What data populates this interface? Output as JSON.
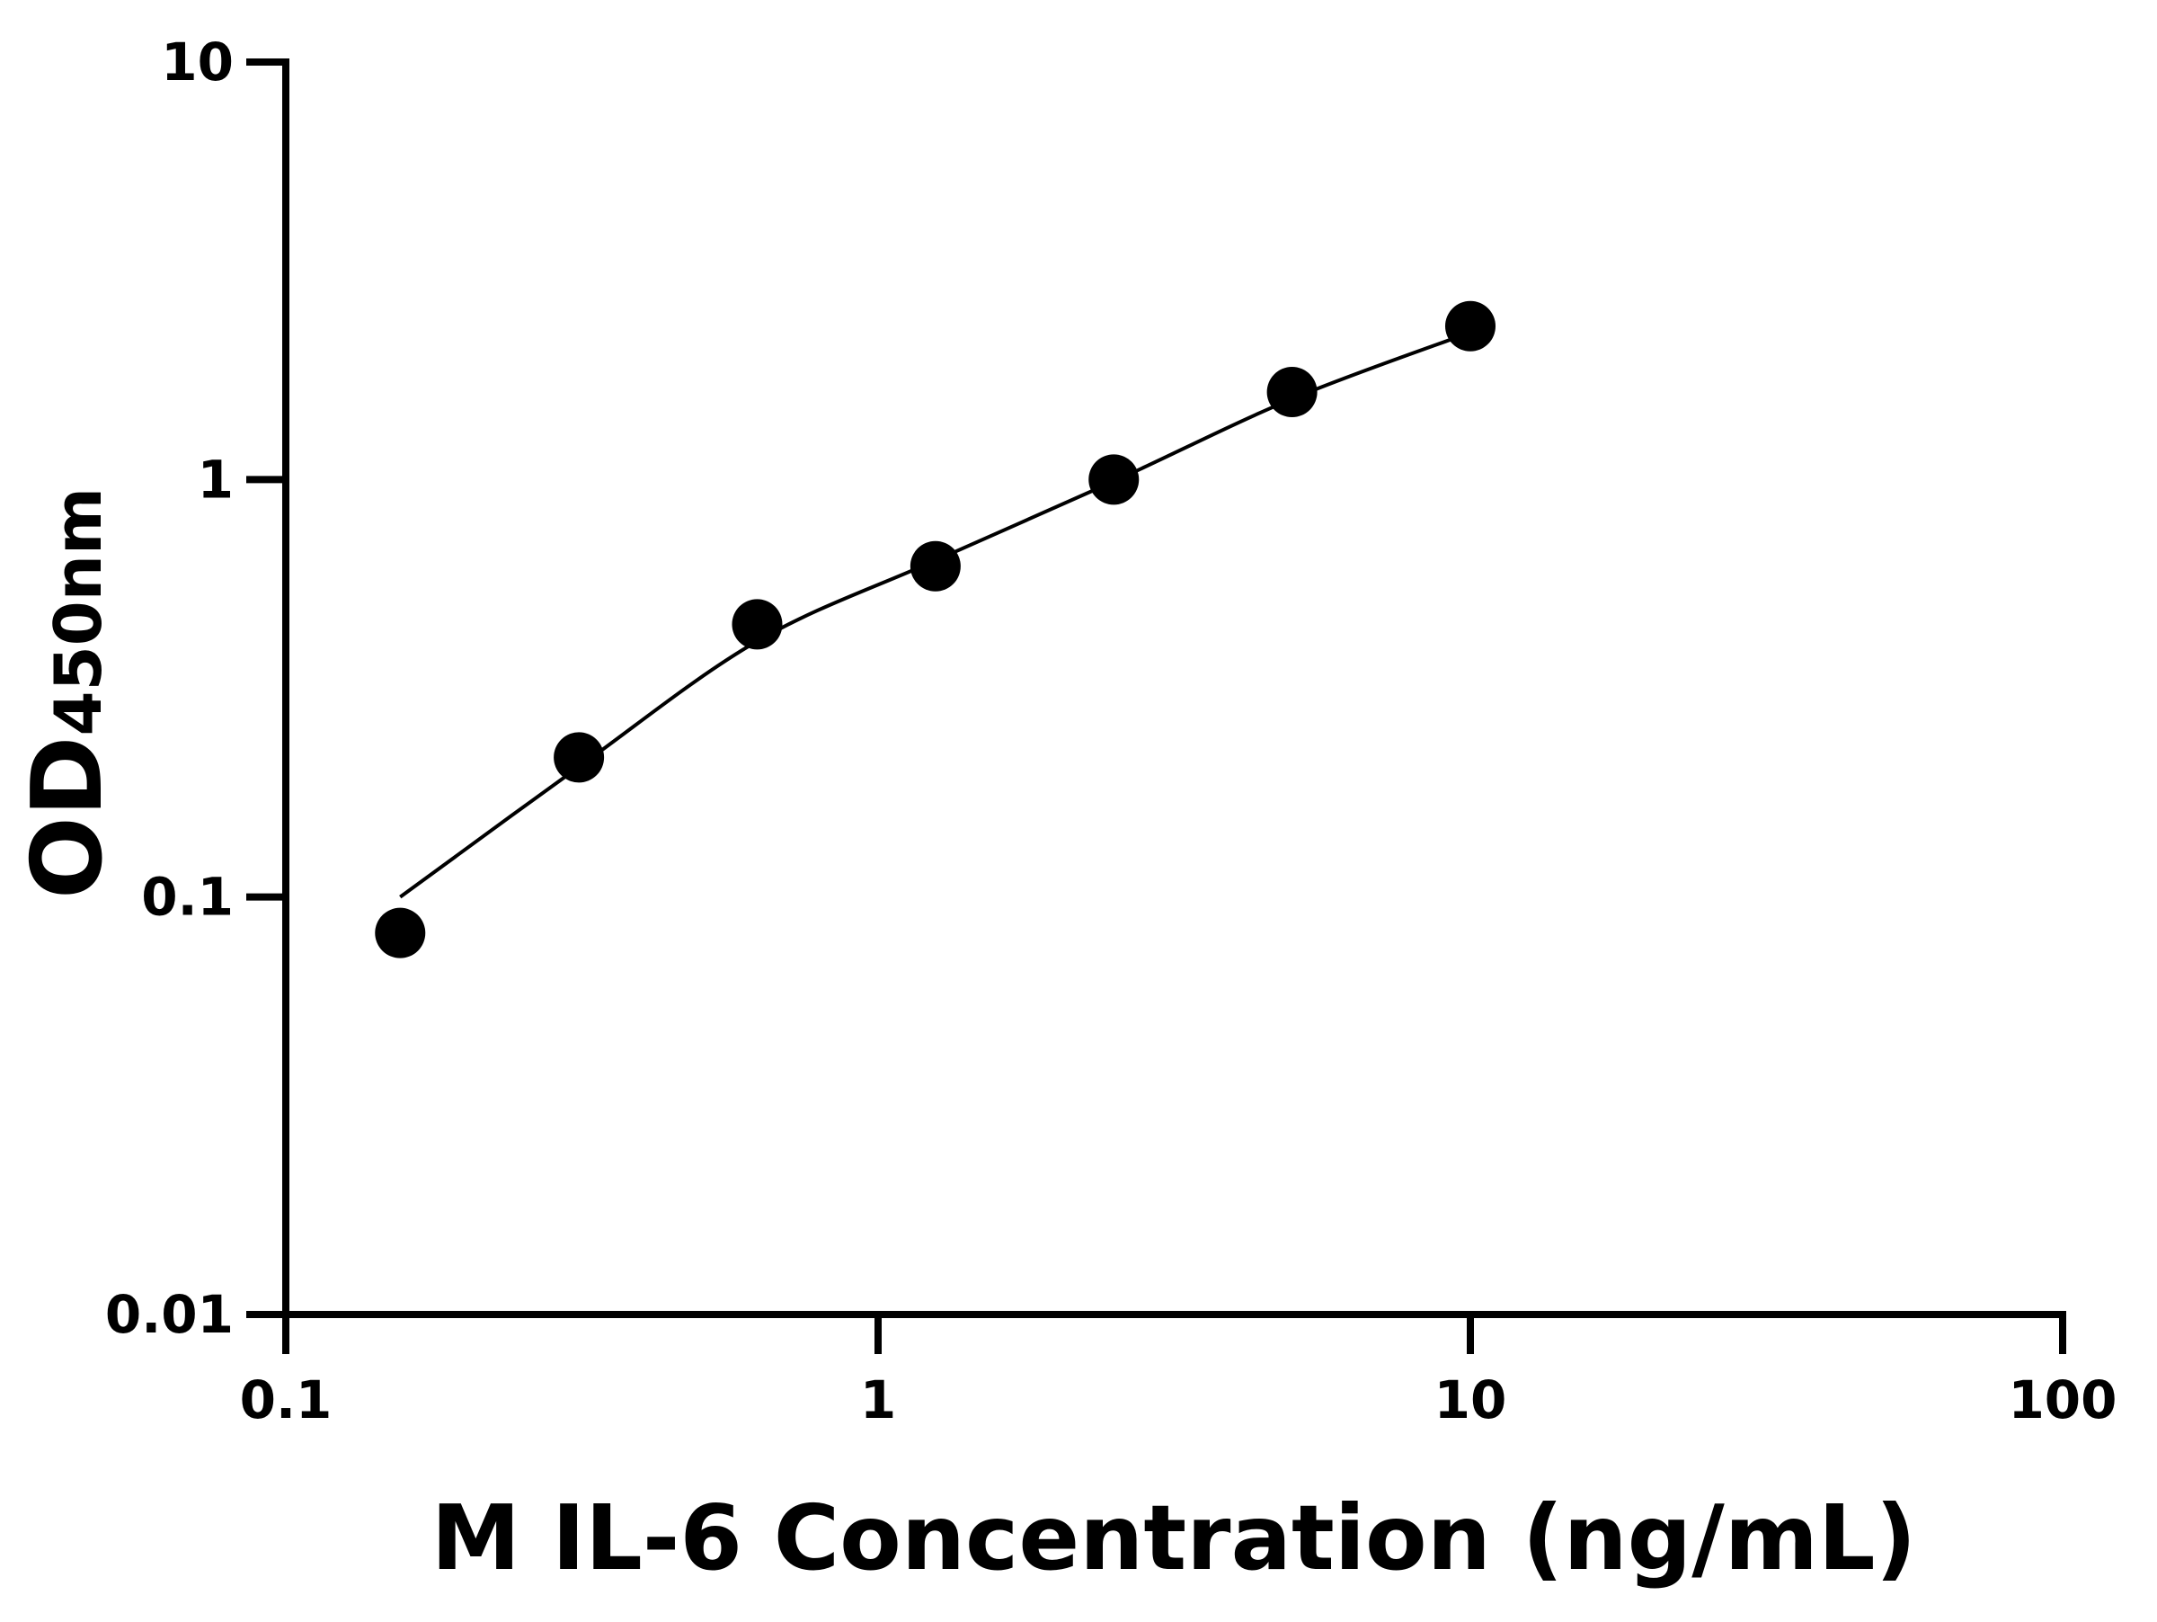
{
  "chart_data": {
    "type": "scatter",
    "xlabel": "M IL-6 Concentration (ng/mL)",
    "ylabel": {
      "main": "OD",
      "sub": "450nm"
    },
    "xscale": "log",
    "yscale": "log",
    "xlim": [
      0.1,
      100
    ],
    "ylim": [
      0.01,
      10
    ],
    "xticks": [
      "0.1",
      "1",
      "10",
      "100"
    ],
    "yticks": [
      "0.01",
      "0.1",
      "1",
      "10"
    ],
    "grid": false,
    "points": {
      "x": [
        0.156,
        0.3125,
        0.625,
        1.25,
        2.5,
        5,
        10
      ],
      "y": [
        0.082,
        0.216,
        0.45,
        0.62,
        1.0,
        1.62,
        2.33
      ]
    },
    "fit_curve": {
      "x": [
        0.156,
        0.3125,
        0.625,
        1.25,
        2.5,
        5,
        10
      ],
      "y": [
        0.1,
        0.205,
        0.41,
        0.64,
        0.99,
        1.56,
        2.25
      ]
    },
    "colors": {
      "points": "#000000",
      "line": "#000000"
    }
  }
}
